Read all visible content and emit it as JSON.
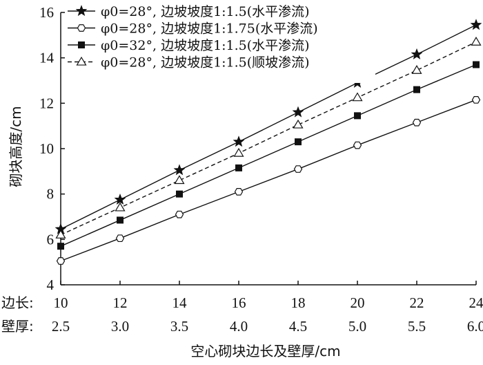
{
  "chart_data": {
    "type": "line",
    "ylabel": "砌块高度/cm",
    "xlabel": "空心砌块边长及壁厚/cm",
    "ylim": [
      4,
      16
    ],
    "yticks": [
      "4",
      "6",
      "8",
      "10",
      "12",
      "14",
      "16"
    ],
    "x_rows": [
      {
        "label": "边长:",
        "values": [
          "10",
          "12",
          "14",
          "16",
          "18",
          "20",
          "22",
          "24"
        ]
      },
      {
        "label": "壁厚:",
        "values": [
          "2.5",
          "3.0",
          "3.5",
          "4.0",
          "4.5",
          "5.0",
          "5.5",
          "6.0"
        ]
      }
    ],
    "x": [
      10,
      12,
      14,
      16,
      18,
      20,
      22,
      24
    ],
    "xlim": [
      10,
      24
    ],
    "legend_position": "top-left",
    "series": [
      {
        "name": "φ0=28°, 边坡坡度1:1.5(水平渗流)",
        "marker": "star",
        "line": "solid",
        "values": [
          6.45,
          7.75,
          9.05,
          10.3,
          11.6,
          12.9,
          14.15,
          15.45
        ]
      },
      {
        "name": "φ0=28°, 边坡坡度1:1.75(水平渗流)",
        "marker": "hexagon-open",
        "line": "solid",
        "values": [
          5.05,
          6.05,
          7.1,
          8.1,
          9.1,
          10.15,
          11.15,
          12.15
        ]
      },
      {
        "name": "φ0=32°, 边坡坡度1:1.5(水平渗流)",
        "marker": "square-filled",
        "line": "solid",
        "values": [
          5.7,
          6.85,
          8.0,
          9.15,
          10.3,
          11.45,
          12.6,
          13.7
        ]
      },
      {
        "name": "φ0=28°, 边坡坡度1:1.5(顺坡渗流)",
        "marker": "triangle-open",
        "line": "dashed",
        "values": [
          6.2,
          7.4,
          8.6,
          9.8,
          11.05,
          12.25,
          13.45,
          14.7
        ]
      }
    ]
  }
}
